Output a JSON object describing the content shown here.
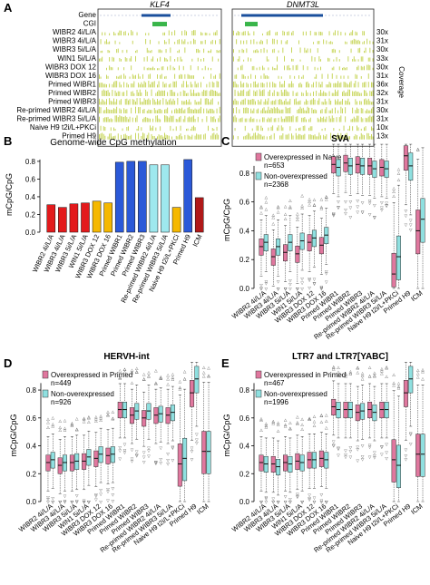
{
  "panel_letters": [
    "A",
    "B",
    "C",
    "D",
    "E"
  ],
  "panelA": {
    "genes": [
      "KLF4",
      "DNMT3L"
    ],
    "row_labels": [
      "Gene",
      "CGI",
      "WIBR2 4i/L/A",
      "WIBR3 4i/L/A",
      "WIBR3 5i/L/A",
      "WIN1 5i/L/A",
      "WIBR3 DOX 12",
      "WIBR3 DOX 16",
      "Primed WIBR1",
      "Primed WIBR2",
      "Primed WIBR3",
      "Re-primed WIBR2 4i/L/A",
      "Re-primed WIBR3 5i/L/A",
      "Naive H9 t2i/L+PKCi",
      "Primed H9"
    ],
    "coverage": [
      "30x",
      "31x",
      "30x",
      "33x",
      "30x",
      "31x",
      "36x",
      "32x",
      "31x",
      "30x",
      "31x",
      "10x",
      "13x"
    ],
    "coverage_label": "Coverage",
    "colors": {
      "track": "#c2d14a",
      "cgi": "#39b54a",
      "gene": "#1a4f9c"
    }
  },
  "panelB": {
    "title": "Genome-wide CpG methylation",
    "ylabel": "mCpG/CpG",
    "categories": [
      "WIBR2 4i/L/A",
      "WIBR3 4i/L/A",
      "WIBR3 5i/L/A",
      "WIN1 5i/L/A",
      "WIBR3 DOX 12",
      "WIBR3 DOX 16",
      "Primed WIBR1",
      "Primed WIBR2",
      "Primed WIBR3",
      "Re-primed WIBR2 4i/L/A",
      "Re-primed WIBR3 5i/L/A",
      "Naive H9 t2i/L+PKCi",
      "Primed H9",
      "ICM"
    ],
    "yticks": [
      "0.0",
      "0.2",
      "0.4",
      "0.6",
      "0.8"
    ]
  },
  "panelC": {
    "title": "SVA",
    "ylabel": "mCpG/CpG",
    "legend": [
      "Overexpressed in Naive",
      "n=653",
      "Non-overexpressed",
      "n=2368"
    ],
    "yticks": [
      "0.0",
      "0.2",
      "0.4",
      "0.6",
      "0.8"
    ]
  },
  "panelD": {
    "title": "HERVH-int",
    "ylabel": "mCpG/CpG",
    "legend": [
      "Overexpressed in Primed",
      "n=449",
      "Non-overexpressed",
      "n=926"
    ],
    "yticks": [
      "0.0",
      "0.2",
      "0.4",
      "0.6",
      "0.8"
    ]
  },
  "panelE": {
    "title": "LTR7 and LTR7[YABC]",
    "ylabel": "mCpG/CpG",
    "legend": [
      "Overexpressed in Primed",
      "n=467",
      "Non-overexpressed",
      "n=1996"
    ],
    "yticks": [
      "0.0",
      "0.2",
      "0.4",
      "0.6",
      "0.8"
    ]
  },
  "colors": {
    "red": "#e31a1c",
    "yellow": "#f5b800",
    "blue": "#2b59d8",
    "cyan": "#9ee8ee",
    "darkred": "#b01818",
    "pink": "#e0779e",
    "teal": "#8fe0e0"
  },
  "chart_data": [
    {
      "type": "bar",
      "title": "Genome-wide CpG methylation",
      "ylabel": "mCpG/CpG",
      "ylim": [
        0,
        0.9
      ],
      "categories": [
        "WIBR2 4i/L/A",
        "WIBR3 4i/L/A",
        "WIBR3 5i/L/A",
        "WIN1 5i/L/A",
        "WIBR3 DOX 12",
        "WIBR3 DOX 16",
        "Primed WIBR1",
        "Primed WIBR2",
        "Primed WIBR3",
        "Re-primed WIBR2 4i/L/A",
        "Re-primed WIBR3 5i/L/A",
        "Naive H9 t2i/L+PKCi",
        "Primed H9",
        "ICM"
      ],
      "values": [
        0.31,
        0.28,
        0.32,
        0.33,
        0.35,
        0.33,
        0.79,
        0.8,
        0.8,
        0.76,
        0.76,
        0.28,
        0.82,
        0.39
      ],
      "bar_colors": [
        "red",
        "red",
        "red",
        "red",
        "yellow",
        "yellow",
        "blue",
        "blue",
        "blue",
        "cyan",
        "cyan",
        "yellow",
        "blue",
        "darkred"
      ]
    },
    {
      "type": "box",
      "title": "SVA",
      "ylabel": "mCpG/CpG",
      "ylim": [
        0,
        1
      ],
      "legend": [
        "Overexpressed in Naive",
        "Non-overexpressed"
      ],
      "categories": [
        "WIBR2 4i/L/A",
        "WIBR3 4i/L/A",
        "WIBR3 5i/L/A",
        "WIN1 5i/L/A",
        "WIBR3 DOX 12",
        "WIBR3 DOX 16",
        "Primed WIBR1",
        "Primed WIBR2",
        "Primed WIBR3",
        "Re-primed WIBR2 4i/L/A",
        "Re-primed WIBR3 5i/L/A",
        "Naive H9 t2i/L+PKCi",
        "Primed H9",
        "ICM"
      ],
      "series": [
        {
          "name": "Overexpressed in Naive",
          "medians": [
            0.29,
            0.22,
            0.25,
            0.24,
            0.32,
            0.3,
            0.86,
            0.87,
            0.86,
            0.85,
            0.84,
            0.1,
            0.92,
            0.4
          ]
        },
        {
          "name": "Non-overexpressed",
          "medians": [
            0.32,
            0.29,
            0.32,
            0.33,
            0.35,
            0.37,
            0.84,
            0.85,
            0.85,
            0.83,
            0.83,
            0.22,
            0.85,
            0.48
          ]
        }
      ]
    },
    {
      "type": "box",
      "title": "HERVH-int",
      "ylabel": "mCpG/CpG",
      "ylim": [
        0,
        1
      ],
      "legend": [
        "Overexpressed in Primed",
        "Non-overexpressed"
      ],
      "categories": [
        "WIBR2 4i/L/A",
        "WIBR3 4i/L/A",
        "WIBR3 5i/L/A",
        "WIN1 5i/L/A",
        "WIBR3 DOX 12",
        "WIBR3 DOX 16",
        "Primed WIBR1",
        "Primed WIBR2",
        "Primed WIBR3",
        "Re-primed WIBR2 4i/L/A",
        "Re-primed WIBR3 5i/L/A",
        "Naive H9 t2i/L+PKCi",
        "Primed H9",
        "ICM"
      ],
      "series": [
        {
          "name": "Overexpressed in Primed",
          "medians": [
            0.28,
            0.26,
            0.28,
            0.29,
            0.31,
            0.33,
            0.66,
            0.62,
            0.6,
            0.62,
            0.62,
            0.27,
            0.78,
            0.36
          ]
        },
        {
          "name": "Non-overexpressed",
          "medians": [
            0.3,
            0.28,
            0.29,
            0.32,
            0.34,
            0.34,
            0.66,
            0.65,
            0.65,
            0.63,
            0.64,
            0.31,
            0.88,
            0.36
          ]
        }
      ]
    },
    {
      "type": "box",
      "title": "LTR7 and LTR7[YABC]",
      "ylabel": "mCpG/CpG",
      "ylim": [
        0,
        1
      ],
      "legend": [
        "Overexpressed in Primed",
        "Non-overexpressed"
      ],
      "categories": [
        "WIBR2 4i/L/A",
        "WIBR3 4i/L/A",
        "WIBR3 5i/L/A",
        "WIN1 5i/L/A",
        "WIBR3 DOX 12",
        "WIBR3 DOX 16",
        "Primed WIBR1",
        "Primed WIBR2",
        "Primed WIBR3",
        "Re-primed WIBR2 4i/L/A",
        "Re-primed WIBR3 5i/L/A",
        "Naive H9 t2i/L+PKCi",
        "Primed H9",
        "ICM"
      ],
      "series": [
        {
          "name": "Overexpressed in Primed",
          "medians": [
            0.28,
            0.27,
            0.28,
            0.29,
            0.3,
            0.31,
            0.68,
            0.66,
            0.64,
            0.66,
            0.66,
            0.3,
            0.78,
            0.34
          ]
        },
        {
          "name": "Non-overexpressed",
          "medians": [
            0.27,
            0.25,
            0.27,
            0.28,
            0.3,
            0.3,
            0.66,
            0.66,
            0.65,
            0.64,
            0.66,
            0.26,
            0.88,
            0.34
          ]
        }
      ]
    }
  ]
}
